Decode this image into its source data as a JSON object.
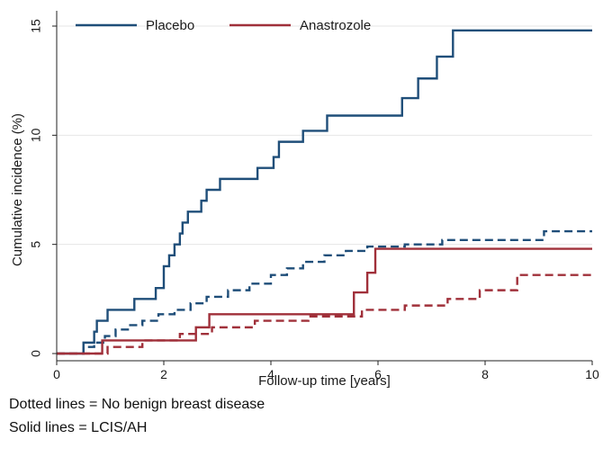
{
  "chart_data": {
    "type": "line",
    "title": "",
    "xlabel": "Follow-up time [years]",
    "ylabel": "Cumulative incidence (%)",
    "xlim": [
      0,
      10
    ],
    "ylim": [
      0,
      15
    ],
    "x_ticks": [
      0,
      2,
      4,
      6,
      8,
      10
    ],
    "y_ticks": [
      0,
      5,
      10,
      15
    ],
    "grid": "horizontal",
    "legend_position": "top-left",
    "legend": [
      {
        "label": "Placebo",
        "color": "#1f4e79"
      },
      {
        "label": "Anastrozole",
        "color": "#a0303a"
      }
    ],
    "series": [
      {
        "group": "Placebo",
        "line_style": "solid",
        "color": "#1f4e79",
        "step_x": [
          0,
          0.5,
          0.6,
          0.7,
          0.75,
          0.95,
          1.45,
          1.85,
          2.0,
          2.1,
          2.2,
          2.3,
          2.35,
          2.45,
          2.6,
          2.7,
          2.8,
          3.05,
          3.75,
          4.05,
          4.15,
          4.6,
          5.05,
          6.45,
          6.75,
          7.1,
          7.4,
          10.0
        ],
        "step_y": [
          0,
          0.5,
          0.5,
          1.0,
          1.5,
          2.0,
          2.5,
          3.0,
          4.0,
          4.5,
          5.0,
          5.5,
          6.0,
          6.5,
          6.5,
          7.0,
          7.5,
          8.0,
          8.5,
          9.0,
          9.7,
          10.2,
          10.9,
          11.7,
          12.6,
          13.6,
          14.8,
          14.8
        ]
      },
      {
        "group": "Placebo",
        "line_style": "dashed",
        "color": "#1f4e79",
        "step_x": [
          0,
          0.5,
          0.7,
          0.9,
          1.1,
          1.35,
          1.6,
          1.9,
          2.2,
          2.5,
          2.8,
          3.2,
          3.6,
          4.0,
          4.3,
          4.6,
          5.0,
          5.4,
          5.8,
          6.5,
          7.2,
          9.1,
          10.0
        ],
        "step_y": [
          0,
          0.3,
          0.5,
          0.8,
          1.1,
          1.3,
          1.5,
          1.8,
          2.0,
          2.3,
          2.6,
          2.9,
          3.2,
          3.6,
          3.9,
          4.2,
          4.5,
          4.7,
          4.9,
          5.0,
          5.2,
          5.6,
          5.6
        ]
      },
      {
        "group": "Anastrozole",
        "line_style": "solid",
        "color": "#a0303a",
        "step_x": [
          0,
          0.85,
          1.5,
          2.6,
          2.85,
          5.55,
          5.8,
          5.95,
          10.0
        ],
        "step_y": [
          0,
          0.6,
          0.6,
          1.2,
          1.8,
          2.8,
          3.7,
          4.8,
          4.8
        ]
      },
      {
        "group": "Anastrozole",
        "line_style": "dashed",
        "color": "#a0303a",
        "step_x": [
          0,
          0.95,
          1.6,
          2.3,
          2.9,
          3.7,
          4.7,
          5.7,
          6.5,
          7.3,
          7.9,
          8.6,
          10.0
        ],
        "step_y": [
          0,
          0.3,
          0.6,
          0.9,
          1.2,
          1.5,
          1.7,
          2.0,
          2.2,
          2.5,
          2.9,
          3.6,
          3.6
        ]
      }
    ]
  },
  "notes": {
    "dotted": "Dotted lines = No benign breast disease",
    "solid": "Solid lines = LCIS/AH"
  }
}
